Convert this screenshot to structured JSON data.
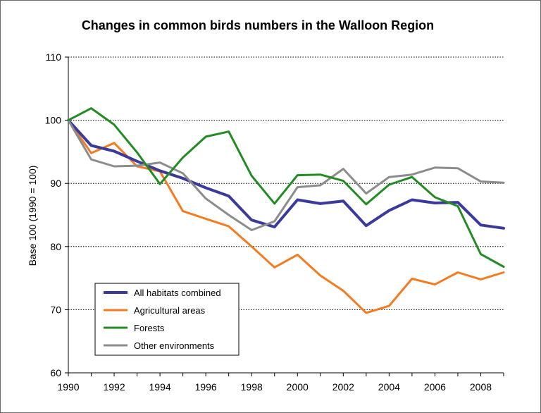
{
  "chart_data": {
    "type": "line",
    "title": "Changes in common birds numbers in the Walloon Region",
    "xlabel": "",
    "ylabel": "Base 100 (1990 = 100)",
    "x": [
      1990,
      1991,
      1992,
      1993,
      1994,
      1995,
      1996,
      1997,
      1998,
      1999,
      2000,
      2001,
      2002,
      2003,
      2004,
      2005,
      2006,
      2007,
      2008,
      2009
    ],
    "xticks": [
      1990,
      1992,
      1994,
      1996,
      1998,
      2000,
      2002,
      2004,
      2006,
      2008
    ],
    "xlim": [
      1990,
      2009
    ],
    "ylim": [
      60,
      110
    ],
    "yticks": [
      60,
      70,
      80,
      90,
      100,
      110
    ],
    "grid": "horizontal dotted",
    "legend_position": "bottom-left",
    "series": [
      {
        "name": "All habitats combined",
        "color": "#3a3a9c",
        "values": [
          100,
          96.0,
          95.1,
          93.5,
          92.0,
          90.8,
          89.3,
          88.0,
          84.2,
          83.1,
          87.4,
          86.8,
          87.2,
          83.3,
          85.7,
          87.4,
          86.9,
          87.0,
          83.4,
          82.9
        ]
      },
      {
        "name": "Agricultural areas",
        "color": "#f47b20",
        "values": [
          100,
          94.8,
          96.4,
          92.7,
          91.9,
          85.6,
          84.4,
          83.2,
          80.0,
          76.7,
          78.7,
          75.4,
          73.0,
          69.5,
          70.6,
          74.9,
          74.0,
          75.9,
          74.8,
          75.9
        ]
      },
      {
        "name": "Forests",
        "color": "#238b23",
        "values": [
          100,
          101.9,
          99.3,
          94.9,
          89.9,
          94.1,
          97.4,
          98.2,
          91.2,
          86.8,
          91.3,
          91.4,
          90.4,
          86.7,
          89.8,
          91.0,
          87.8,
          86.4,
          78.8,
          76.8
        ]
      },
      {
        "name": "Other environments",
        "color": "#8c8c8c",
        "values": [
          100,
          93.8,
          92.7,
          92.8,
          93.3,
          91.6,
          87.6,
          85.0,
          82.6,
          84.0,
          89.4,
          89.7,
          92.3,
          88.4,
          91.0,
          91.4,
          92.5,
          92.4,
          90.3,
          90.1
        ]
      }
    ]
  },
  "colors": {
    "border": "#6b6b6b",
    "axis": "#000000",
    "grid": "#000000"
  }
}
